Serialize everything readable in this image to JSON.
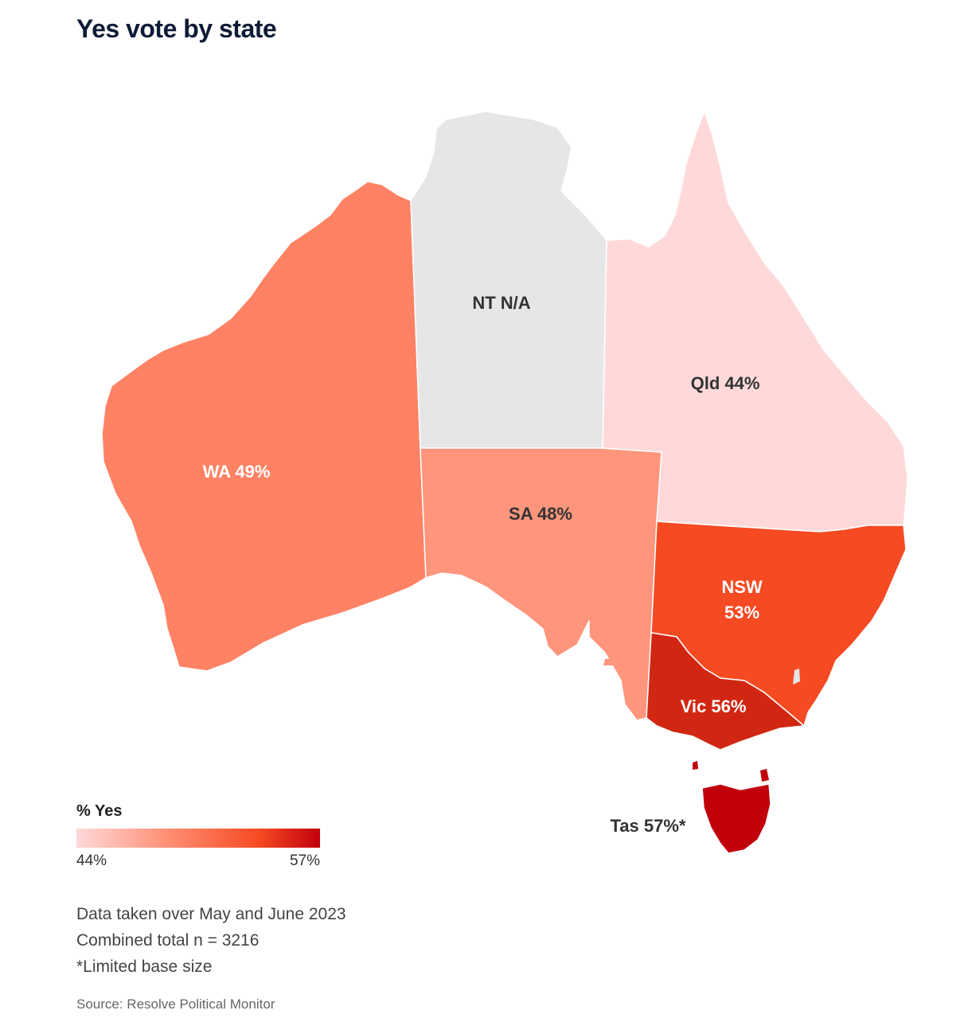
{
  "title": "Yes vote by state",
  "colors": {
    "na": "#e6e6e6",
    "scale_low": "#ffd9d9",
    "scale_high": "#c1000c"
  },
  "states": [
    {
      "code": "WA",
      "label": "WA 49%",
      "value": 49,
      "color": "#ff8265"
    },
    {
      "code": "NT",
      "label": "NT N/A",
      "value": null,
      "color": "#e6e6e6"
    },
    {
      "code": "SA",
      "label": "SA 48%",
      "value": 48,
      "color": "#ff957c"
    },
    {
      "code": "Qld",
      "label": "Qld 44%",
      "value": 44,
      "color": "#ffd9d9"
    },
    {
      "code": "NSW",
      "label_line1": "NSW",
      "label_line2": "53%",
      "value": 53,
      "color": "#f64a23"
    },
    {
      "code": "Vic",
      "label": "Vic 56%",
      "value": 56,
      "color": "#d12712"
    },
    {
      "code": "Tas",
      "label": "Tas 57%*",
      "value": 57,
      "color": "#c1000c"
    }
  ],
  "legend": {
    "title": "% Yes",
    "min_label": "44%",
    "max_label": "57%",
    "min": 44,
    "max": 57
  },
  "notes": [
    "Data taken over May and June 2023",
    "Combined total n = 3216",
    "*Limited base size"
  ],
  "source": "Source: Resolve Political Monitor"
}
